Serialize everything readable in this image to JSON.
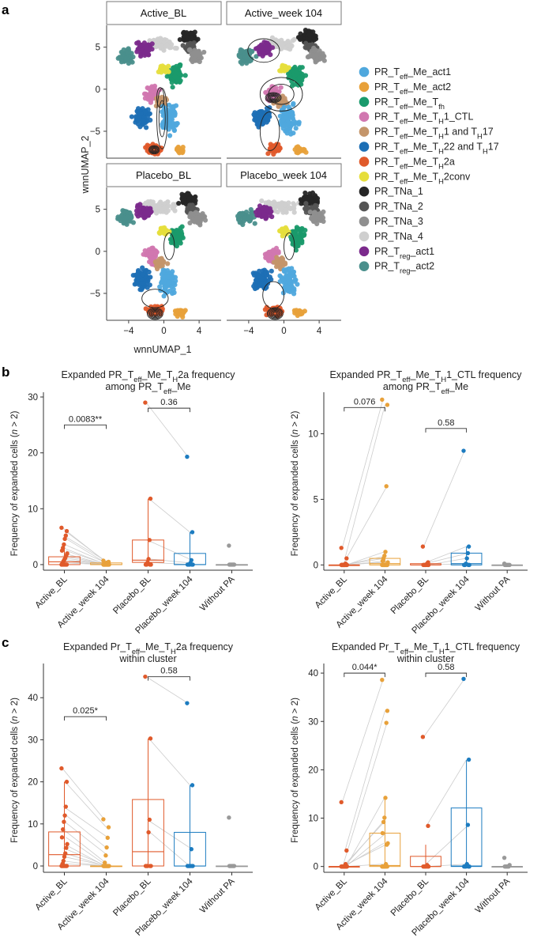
{
  "panel_labels": {
    "a": "a",
    "b": "b",
    "c": "c"
  },
  "umap": {
    "facets": [
      "Active_BL",
      "Active_week 104",
      "Placebo_BL",
      "Placebo_week 104"
    ],
    "xlabel": "wnnUMAP_1",
    "ylabel": "wnnUMAP_2",
    "xticks": [
      -4,
      0,
      4
    ],
    "yticks": [
      5,
      0,
      -5
    ],
    "clusters": [
      {
        "name": "PR_Teff_Me_act1",
        "base": "PR_T",
        "s1": "eff",
        "mid": "_Me_act1",
        "s2": "",
        "tail": "",
        "color": "#4fa8dd"
      },
      {
        "name": "PR_Teff_Me_act2",
        "base": "PR_T",
        "s1": "eff",
        "mid": "_Me_act2",
        "s2": "",
        "tail": "",
        "color": "#e8a13a"
      },
      {
        "name": "PR_Teff_Me_Tfh",
        "base": "PR_T",
        "s1": "eff",
        "mid": "_Me_T",
        "s2": "fh",
        "tail": "",
        "color": "#1a9a6c"
      },
      {
        "name": "PR_Teff_Me_TH1_CTL",
        "base": "PR_T",
        "s1": "eff",
        "mid": "_Me_T",
        "s2": "H",
        "tail": "1_CTL",
        "color": "#d177b0"
      },
      {
        "name": "PR_Teff_Me_TH1 and TH17",
        "base": "PR_T",
        "s1": "eff",
        "mid": "_Me_T",
        "s2": "H",
        "tail": "1 and T",
        "s3": "H",
        "tail2": "17",
        "color": "#c4956a"
      },
      {
        "name": "PR_Teff_Me_TH22 and TH17",
        "base": "PR_T",
        "s1": "eff",
        "mid": "_Me_T",
        "s2": "H",
        "tail": "22 and T",
        "s3": "H",
        "tail2": "17",
        "color": "#1d6fb5"
      },
      {
        "name": "PR_Teff_Me_TH2a",
        "base": "PR_T",
        "s1": "eff",
        "mid": "_Me_T",
        "s2": "H",
        "tail": "2a",
        "color": "#e05a2b"
      },
      {
        "name": "PR_Teff_Me_TH2conv",
        "base": "PR_T",
        "s1": "eff",
        "mid": "_Me_T",
        "s2": "H",
        "tail": "2conv",
        "color": "#e6de3c"
      },
      {
        "name": "PR_TNa_1",
        "base": "PR_TNa_1",
        "s1": "",
        "mid": "",
        "s2": "",
        "tail": "",
        "color": "#262626"
      },
      {
        "name": "PR_TNa_2",
        "base": "PR_TNa_2",
        "s1": "",
        "mid": "",
        "s2": "",
        "tail": "",
        "color": "#555555"
      },
      {
        "name": "PR_TNa_3",
        "base": "PR_TNa_3",
        "s1": "",
        "mid": "",
        "s2": "",
        "tail": "",
        "color": "#8f8f8f"
      },
      {
        "name": "PR_TNa_4",
        "base": "PR_TNa_4",
        "s1": "",
        "mid": "",
        "s2": "",
        "tail": "",
        "color": "#cfcfcf"
      },
      {
        "name": "PR_Treg_act1",
        "base": "PR_T",
        "s1": "reg",
        "mid": "_act1",
        "s2": "",
        "tail": "",
        "color": "#7b2a8c"
      },
      {
        "name": "PR_Treg_act2",
        "base": "PR_T",
        "s1": "reg",
        "mid": "_act2",
        "s2": "",
        "tail": "",
        "color": "#4a8f8c"
      }
    ]
  },
  "colors": {
    "active_bl": "#e05a2b",
    "active_wk104": "#e8a13a",
    "placebo_bl": "#e05a2b",
    "placebo_wk104": "#1d7cc0",
    "without_pa": "#999999",
    "pair_line": "#cccccc"
  },
  "chart_data": [
    {
      "type": "box",
      "panel": "b",
      "title": {
        "l1a": "Expanded PR_T",
        "l1s1": "eff",
        "l1b": "_Me_T",
        "l1s2": "H",
        "l1c": "2a frequency",
        "l2a": "among PR_T",
        "l2s1": "eff",
        "l2b": "_Me"
      },
      "ylabel_a": "Frequency of expanded cells (",
      "ylabel_n": "n",
      "ylabel_b": " > 2)",
      "ylim": [
        -1,
        30
      ],
      "yticks": [
        0,
        10,
        20,
        30
      ],
      "categories": [
        "Active_BL",
        "Active_week 104",
        "Placebo_BL",
        "Placebo_week 104",
        "Without PA"
      ],
      "boxes": [
        {
          "q1": 0,
          "median": 0.5,
          "q3": 1.4,
          "whisker_low": 0,
          "whisker_high": 3.6
        },
        {
          "q1": 0,
          "median": 0,
          "q3": 0.3,
          "whisker_low": 0,
          "whisker_high": 0.7
        },
        {
          "q1": 0.4,
          "median": 0.8,
          "q3": 4.4,
          "whisker_low": 0,
          "whisker_high": 11.8
        },
        {
          "q1": 0,
          "median": 0,
          "q3": 2.0,
          "whisker_low": 0,
          "whisker_high": 5.8
        },
        {
          "q1": 0,
          "median": 0,
          "q3": 0,
          "whisker_low": 0,
          "whisker_high": 0
        }
      ],
      "points": [
        [
          6.6,
          6.0,
          5.2,
          4.6,
          3.6,
          3.0,
          2.5,
          2.0,
          1.6,
          1.2,
          0.9,
          0.6,
          0.3,
          0,
          0,
          0,
          0,
          0,
          0,
          0
        ],
        [
          0.7,
          0.5,
          0.4,
          0.3,
          0.2,
          0.1,
          0,
          0,
          0,
          0,
          0,
          0,
          0,
          0,
          0,
          0,
          0,
          0,
          0,
          0
        ],
        [
          29,
          11.8,
          4.4,
          1.0,
          0.4,
          0,
          0,
          0,
          0
        ],
        [
          19.3,
          5.8,
          0.8,
          0.3,
          0,
          0,
          0,
          0,
          0
        ],
        [
          3.4,
          0,
          0,
          0,
          0,
          0,
          0
        ]
      ],
      "comparisons": [
        {
          "from": 0,
          "to": 1,
          "y": 25,
          "label": "0.0083**"
        },
        {
          "from": 2,
          "to": 3,
          "y": 28,
          "label": "0.36"
        }
      ]
    },
    {
      "type": "box",
      "panel": "b",
      "title": {
        "l1a": "Expanded PR_T",
        "l1s1": "eff",
        "l1b": "_Me_T",
        "l1s2": "H",
        "l1c": "1_CTL frequency",
        "l2a": "among PR_T",
        "l2s1": "eff",
        "l2b": "_Me"
      },
      "ylabel_a": "Frequency of expanded cells (",
      "ylabel_n": "n",
      "ylabel_b": " > 2)",
      "ylim": [
        -0.4,
        12.8
      ],
      "yticks": [
        0,
        5,
        10
      ],
      "categories": [
        "Active_BL",
        "Active_week 104",
        "Placebo_BL",
        "Placebo_week 104",
        "Without PA"
      ],
      "boxes": [
        {
          "q1": 0,
          "median": 0,
          "q3": 0,
          "whisker_low": 0,
          "whisker_high": 0
        },
        {
          "q1": 0,
          "median": 0.1,
          "q3": 0.5,
          "whisker_low": 0,
          "whisker_high": 1.0
        },
        {
          "q1": 0,
          "median": 0,
          "q3": 0.1,
          "whisker_low": 0,
          "whisker_high": 0.2
        },
        {
          "q1": 0,
          "median": 0.1,
          "q3": 0.9,
          "whisker_low": 0,
          "whisker_high": 1.4
        },
        {
          "q1": 0,
          "median": 0,
          "q3": 0,
          "whisker_low": 0,
          "whisker_high": 0
        }
      ],
      "points": [
        [
          1.3,
          0.5,
          0.1,
          0,
          0,
          0,
          0,
          0,
          0,
          0,
          0,
          0,
          0,
          0,
          0,
          0,
          0,
          0,
          0,
          0
        ],
        [
          12.6,
          12.2,
          6.0,
          1.0,
          0.7,
          0.5,
          0.3,
          0.2,
          0,
          0,
          0,
          0,
          0,
          0,
          0,
          0,
          0,
          0,
          0,
          0
        ],
        [
          1.4,
          0.2,
          0.1,
          0,
          0,
          0,
          0,
          0,
          0
        ],
        [
          8.7,
          1.4,
          0.9,
          0.5,
          0.1,
          0,
          0,
          0,
          0
        ],
        [
          0.1,
          0,
          0,
          0,
          0,
          0,
          0
        ]
      ],
      "comparisons": [
        {
          "from": 0,
          "to": 1,
          "y": 12.0,
          "label": "0.076"
        },
        {
          "from": 2,
          "to": 3,
          "y": 10.4,
          "label": "0.58"
        }
      ]
    },
    {
      "type": "box",
      "panel": "c",
      "title": {
        "l1a": "Expanded Pr_T",
        "l1s1": "eff",
        "l1b": "_Me_T",
        "l1s2": "H",
        "l1c": "2a frequency",
        "l2a": "within cluster",
        "l2s1": "",
        "l2b": ""
      },
      "ylabel_a": "Frequency of expanded cells (",
      "ylabel_n": "n",
      "ylabel_b": " > 2)",
      "ylim": [
        -1.5,
        47
      ],
      "yticks": [
        0,
        10,
        20,
        30,
        40
      ],
      "categories": [
        "Active_BL",
        "Active_week 104",
        "Placebo_BL",
        "Placebo_week 104",
        "Without PA"
      ],
      "boxes": [
        {
          "q1": 0,
          "median": 2.7,
          "q3": 8.1,
          "whisker_low": 0,
          "whisker_high": 20.0
        },
        {
          "q1": 0,
          "median": 0,
          "q3": 0,
          "whisker_low": 0,
          "whisker_high": 0
        },
        {
          "q1": 0,
          "median": 3.4,
          "q3": 15.8,
          "whisker_low": 0,
          "whisker_high": 30.3
        },
        {
          "q1": 0,
          "median": 0,
          "q3": 8.0,
          "whisker_low": 0,
          "whisker_high": 19.2
        },
        {
          "q1": 0,
          "median": 0,
          "q3": 0,
          "whisker_low": 0,
          "whisker_high": 0
        }
      ],
      "points": [
        [
          23.2,
          20.0,
          14.1,
          12.0,
          10.5,
          8.7,
          6.8,
          5.2,
          4.3,
          3.0,
          2.2,
          1.2,
          0.5,
          0,
          0,
          0,
          0,
          0,
          0,
          0
        ],
        [
          11.1,
          9.2,
          6.7,
          4.4,
          2.5,
          0.8,
          0,
          0,
          0,
          0,
          0,
          0,
          0,
          0,
          0,
          0,
          0,
          0,
          0,
          0
        ],
        [
          45.0,
          30.3,
          11.0,
          8.0,
          0,
          0,
          0,
          0,
          0
        ],
        [
          38.7,
          19.2,
          4.0,
          0,
          0,
          0,
          0,
          0,
          0
        ],
        [
          11.5,
          0,
          0,
          0,
          0,
          0,
          0
        ]
      ],
      "comparisons": [
        {
          "from": 0,
          "to": 1,
          "y": 35.5,
          "label": "0.025*"
        },
        {
          "from": 2,
          "to": 3,
          "y": 45.0,
          "label": "0.58"
        }
      ]
    },
    {
      "type": "box",
      "panel": "c",
      "title": {
        "l1a": "Expanded Pr_T",
        "l1s1": "eff",
        "l1b": "_Me_T",
        "l1s2": "H",
        "l1c": "1_CTL frequency",
        "l2a": "within cluster",
        "l2s1": "",
        "l2b": ""
      },
      "ylabel_a": "Frequency of expanded cells (",
      "ylabel_n": "n",
      "ylabel_b": " > 2)",
      "ylim": [
        -1.2,
        41
      ],
      "yticks": [
        0,
        10,
        20,
        30,
        40
      ],
      "categories": [
        "Active_BL",
        "Active_week 104",
        "Placebo_BL",
        "Placebo_week 104",
        "Without PA"
      ],
      "boxes": [
        {
          "q1": 0,
          "median": 0,
          "q3": 0,
          "whisker_low": 0,
          "whisker_high": 0
        },
        {
          "q1": 0,
          "median": 0.2,
          "q3": 6.9,
          "whisker_low": 0,
          "whisker_high": 14.2
        },
        {
          "q1": 0,
          "median": 0,
          "q3": 2.1,
          "whisker_low": 0,
          "whisker_high": 4.5
        },
        {
          "q1": 0,
          "median": 0.1,
          "q3": 12.1,
          "whisker_low": 0,
          "whisker_high": 22.0
        },
        {
          "q1": 0,
          "median": 0,
          "q3": 0,
          "whisker_low": 0,
          "whisker_high": 0
        }
      ],
      "points": [
        [
          13.3,
          3.3,
          0.5,
          0,
          0,
          0,
          0,
          0,
          0,
          0,
          0,
          0,
          0,
          0,
          0,
          0,
          0,
          0,
          0,
          0
        ],
        [
          38.6,
          32.2,
          29.7,
          14.2,
          10.1,
          9.2,
          6.9,
          4.8,
          4.5,
          0.5,
          0,
          0,
          0,
          0,
          0,
          0,
          0,
          0,
          0,
          0
        ],
        [
          26.8,
          8.4,
          0.3,
          0,
          0,
          0,
          0,
          0,
          0
        ],
        [
          38.8,
          22.1,
          8.6,
          0.5,
          0,
          0,
          0,
          0,
          0
        ],
        [
          1.8,
          0.3,
          0,
          0,
          0,
          0,
          0
        ]
      ],
      "comparisons": [
        {
          "from": 0,
          "to": 1,
          "y": 40.0,
          "label": "0.044*"
        },
        {
          "from": 2,
          "to": 3,
          "y": 40.0,
          "label": "0.58"
        }
      ]
    }
  ]
}
